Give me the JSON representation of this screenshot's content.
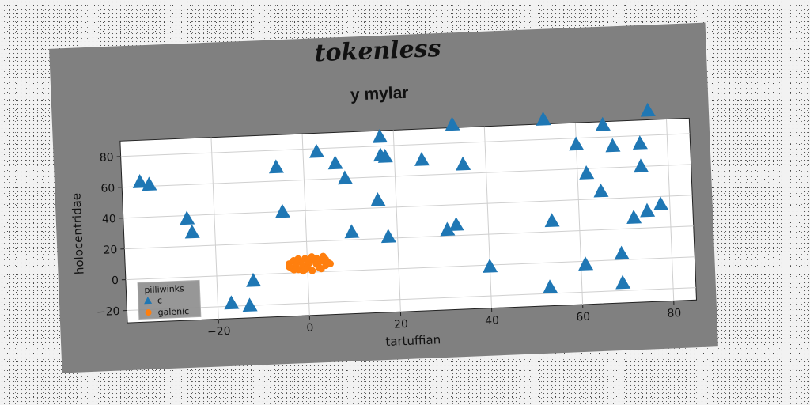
{
  "chart_data": {
    "type": "scatter",
    "suptitle": "tokenless",
    "title": "y mylar",
    "xlabel": "tartuffian",
    "ylabel": "holocentridae",
    "xlim": [
      -40,
      85
    ],
    "ylim": [
      -28,
      90
    ],
    "xticks": [
      -20,
      0,
      20,
      40,
      60,
      80
    ],
    "yticks": [
      -20,
      0,
      20,
      40,
      60,
      80
    ],
    "grid": true,
    "legend": {
      "title": "pilliwinks",
      "placement": "lower-left",
      "entries": [
        "c",
        "galenic"
      ]
    },
    "series": [
      {
        "name": "c",
        "marker": "triangle",
        "color": "#1f77b4",
        "points": [
          [
            -36,
            63
          ],
          [
            -34,
            61
          ],
          [
            -26,
            38
          ],
          [
            -25,
            29
          ],
          [
            -12,
            -4
          ],
          [
            -13,
            -20
          ],
          [
            -17,
            -18
          ],
          [
            -6,
            69
          ],
          [
            -5,
            40
          ],
          [
            3,
            78
          ],
          [
            7,
            70
          ],
          [
            9,
            60
          ],
          [
            10,
            25
          ],
          [
            16,
            45
          ],
          [
            17,
            74
          ],
          [
            18,
            73
          ],
          [
            17,
            86
          ],
          [
            18,
            21
          ],
          [
            26,
            70
          ],
          [
            31,
            24
          ],
          [
            33,
            27
          ],
          [
            33,
            92
          ],
          [
            35,
            66
          ],
          [
            40,
            -1
          ],
          [
            53,
            93
          ],
          [
            53,
            -16
          ],
          [
            54,
            27
          ],
          [
            60,
            76
          ],
          [
            61,
            -2
          ],
          [
            62,
            57
          ],
          [
            65,
            45
          ],
          [
            66,
            88
          ],
          [
            68,
            74
          ],
          [
            69,
            4
          ],
          [
            69,
            -15
          ],
          [
            72,
            27
          ],
          [
            74,
            75
          ],
          [
            74,
            60
          ],
          [
            75,
            31
          ],
          [
            76,
            96
          ],
          [
            78,
            35
          ]
        ]
      },
      {
        "name": "galenic",
        "marker": "circle",
        "color": "#ff7f0e",
        "points": [
          [
            -4,
            6
          ],
          [
            -3.5,
            3
          ],
          [
            -3,
            8
          ],
          [
            -2.5,
            5
          ],
          [
            -2,
            2
          ],
          [
            -1.5,
            7
          ],
          [
            -1,
            4
          ],
          [
            -0.5,
            9
          ],
          [
            0,
            3
          ],
          [
            0.5,
            6
          ],
          [
            1,
            1
          ],
          [
            1.5,
            8
          ],
          [
            2,
            5
          ],
          [
            2.5,
            3
          ],
          [
            3,
            7
          ],
          [
            3.5,
            10
          ],
          [
            4,
            4
          ],
          [
            4.5,
            6
          ],
          [
            -3,
            2
          ],
          [
            -1,
            1
          ],
          [
            1,
            10
          ],
          [
            3,
            2
          ],
          [
            -2,
            9
          ],
          [
            2,
            9
          ],
          [
            0,
            7
          ],
          [
            -4,
            4
          ],
          [
            4,
            8
          ],
          [
            5,
            5
          ],
          [
            -0.5,
            2
          ]
        ]
      }
    ]
  }
}
